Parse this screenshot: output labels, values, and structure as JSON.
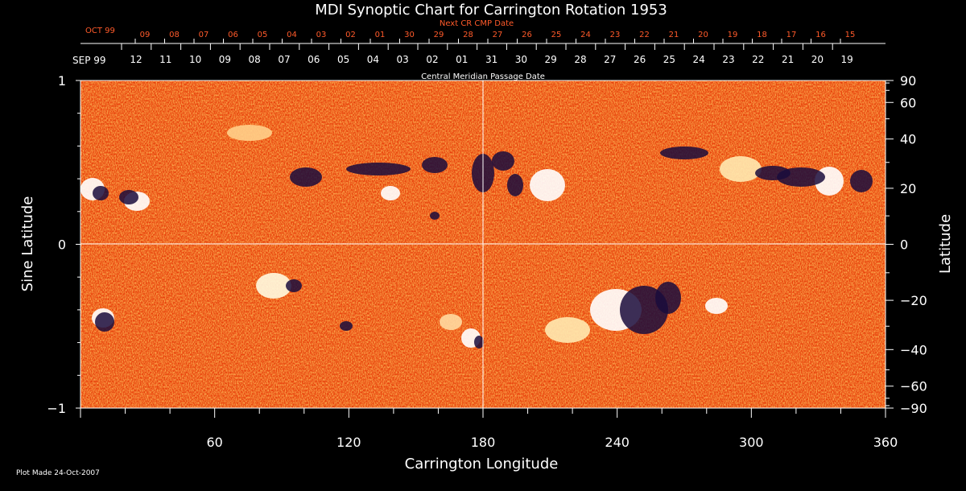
{
  "chart_data": {
    "type": "heatmap",
    "title": "MDI Synoptic Chart for Carrington Rotation 1953",
    "xlabel": "Carrington Longitude",
    "ylabel_left": "Sine Latitude",
    "ylabel_right": "Latitude",
    "xlim": [
      0,
      360
    ],
    "ylim": [
      -1,
      1
    ],
    "x_ticks": [
      60,
      120,
      180,
      240,
      300,
      360
    ],
    "y_ticks_left": [
      1,
      0,
      -1
    ],
    "y_ticks_left_labels": [
      "1",
      "0",
      "−1"
    ],
    "y_ticks_right": [
      90,
      60,
      40,
      20,
      0,
      -20,
      -40,
      -60,
      -90
    ],
    "y_ticks_right_labels": [
      "90",
      "60",
      "40",
      "20",
      "0",
      "−20",
      "−40",
      "−60",
      "−90"
    ],
    "grid": "crosshair at 180 longitude and 0 latitude",
    "next_cr_label": "Next CR CMP Date",
    "next_cr_month": "OCT 99",
    "next_cr_dates": [
      "09",
      "08",
      "07",
      "06",
      "05",
      "04",
      "03",
      "02",
      "01",
      "30",
      "29",
      "28",
      "27",
      "26",
      "25",
      "24",
      "23",
      "22",
      "21",
      "20",
      "19",
      "18",
      "17",
      "16",
      "15"
    ],
    "cmp_label": "Central Meridian Passage Date",
    "cmp_month": "SEP 99",
    "cmp_dates": [
      "12",
      "11",
      "10",
      "09",
      "08",
      "07",
      "06",
      "05",
      "04",
      "03",
      "02",
      "01",
      "31",
      "30",
      "29",
      "28",
      "27",
      "26",
      "25",
      "24",
      "23",
      "22",
      "21",
      "20",
      "19"
    ],
    "colors": {
      "background": "#ff5a14",
      "positive": "#ffffff",
      "negative": "#1a0c3c",
      "axis_red": "#ff5a2a"
    },
    "footer": "Plot Made 24-Oct-2007"
  }
}
